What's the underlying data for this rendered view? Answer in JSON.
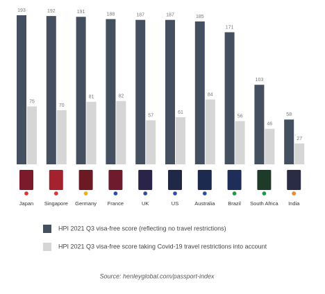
{
  "chart_data": {
    "type": "bar",
    "categories": [
      "Japan",
      "Singapore",
      "Germany",
      "France",
      "UK",
      "US",
      "Australia",
      "Brazil",
      "South Africa",
      "India"
    ],
    "series": [
      {
        "name": "HPI 2021 Q3 visa-free score (reflecting no travel restrictions)",
        "color": "#444f60",
        "values": [
          193,
          192,
          191,
          188,
          187,
          187,
          185,
          171,
          103,
          58
        ]
      },
      {
        "name": "HPI 2021 Q3 visa-free score taking Covid-19 travel restrictions into account",
        "color": "#d6d6d6",
        "values": [
          75,
          70,
          81,
          82,
          57,
          61,
          84,
          56,
          46,
          27
        ]
      }
    ],
    "source": "Source: henleyglobal.com/passport-index"
  }
}
